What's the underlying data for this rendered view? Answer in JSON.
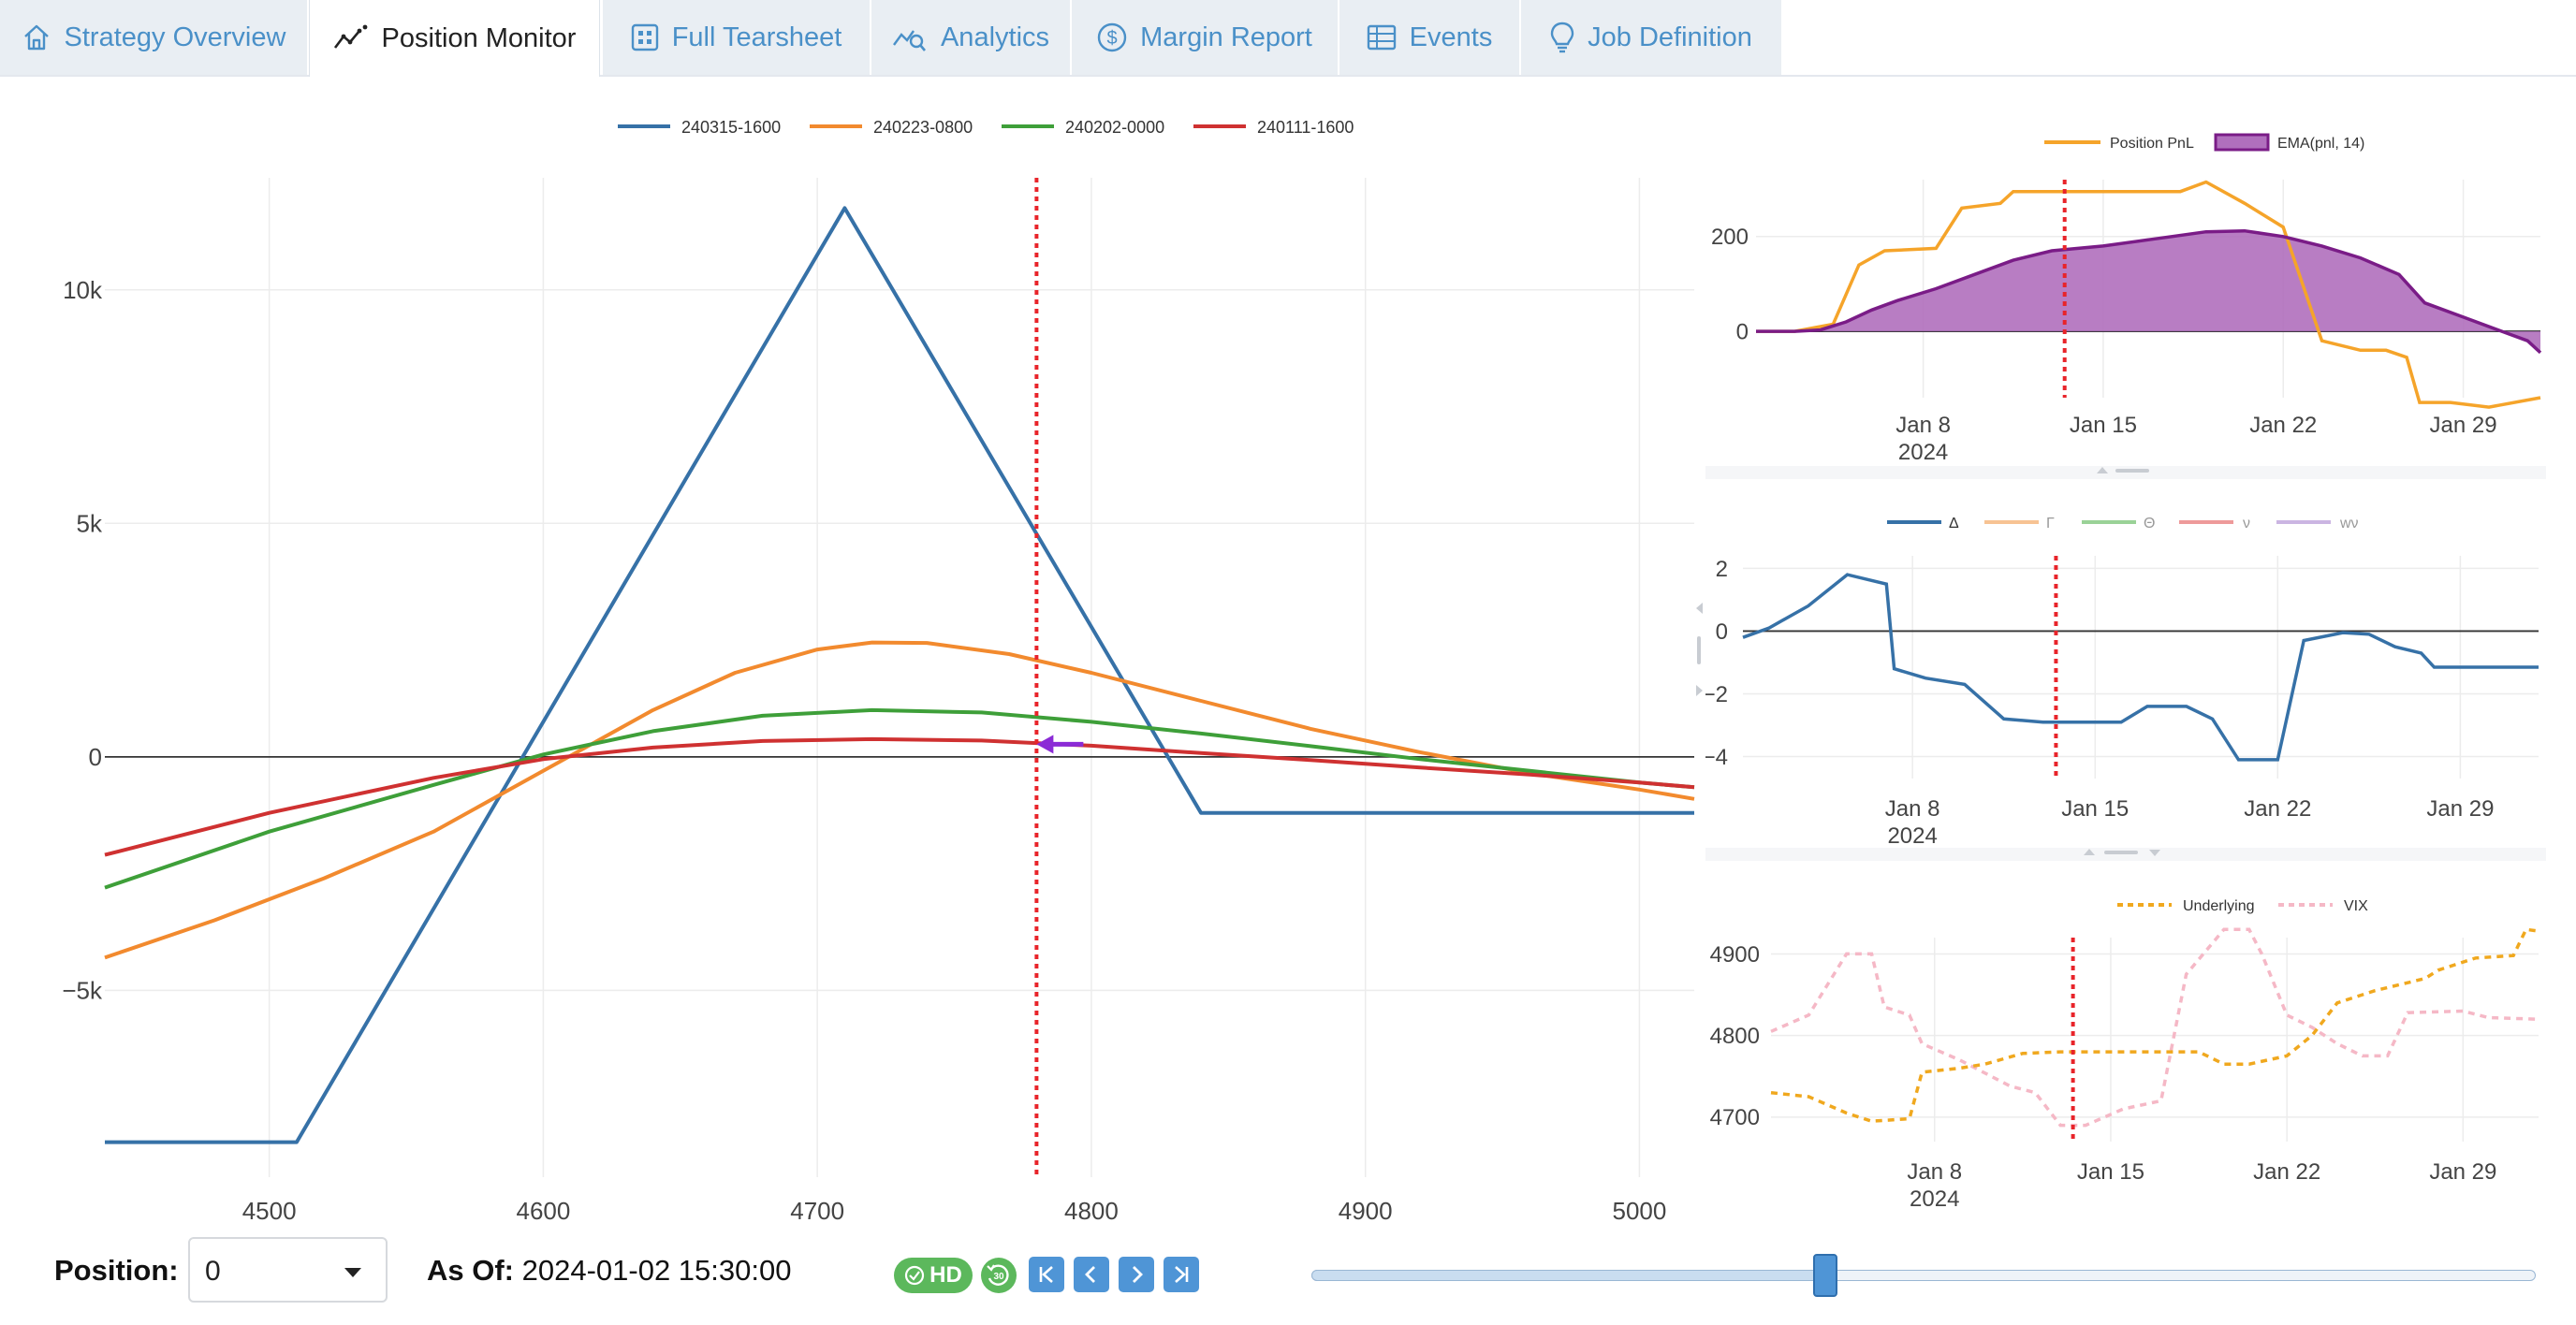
{
  "tabs": [
    {
      "label": "Strategy Overview",
      "icon": "home-icon"
    },
    {
      "label": "Position Monitor",
      "icon": "trend-icon",
      "active": true
    },
    {
      "label": "Full Tearsheet",
      "icon": "grid-icon"
    },
    {
      "label": "Analytics",
      "icon": "analytics-icon"
    },
    {
      "label": "Margin Report",
      "icon": "dollar-icon"
    },
    {
      "label": "Events",
      "icon": "table-icon"
    },
    {
      "label": "Job Definition",
      "icon": "bulb-icon"
    }
  ],
  "colors": {
    "blue": "#3671a7",
    "orange": "#f28a2e",
    "green": "#3e9f39",
    "red": "#cf3131",
    "purple": "#7a1c87",
    "purple_fill": "#b06fbd",
    "pnl_orange": "#f5a42a",
    "vix_pink": "#f5b8c6",
    "marker": "#e8242a",
    "arrow": "#8b2bd6"
  },
  "chart_data": [
    {
      "name": "payoff",
      "type": "line",
      "legend": [
        "240315-1600",
        "240223-0800",
        "240202-0000",
        "240111-1600"
      ],
      "xlim": [
        4440,
        5020
      ],
      "ylim": [
        -9000,
        12400
      ],
      "xticks": [
        4500,
        4600,
        4700,
        4800,
        4900,
        5000
      ],
      "xtick_labels": [
        "4500",
        "4600",
        "4700",
        "4800",
        "4900",
        "5000"
      ],
      "yticks": [
        -5000,
        0,
        5000,
        10000
      ],
      "ytick_labels": [
        "−5k",
        "0",
        "5k",
        "10k"
      ],
      "marker_x": 4780,
      "current_point": {
        "x": 4780,
        "y": 270
      },
      "series": [
        {
          "name": "240315-1600",
          "points": [
            [
              4440,
              -8250
            ],
            [
              4510,
              -8250
            ],
            [
              4710,
              11750
            ],
            [
              4840,
              -1200
            ],
            [
              5020,
              -1200
            ]
          ]
        },
        {
          "name": "240223-0800",
          "points": [
            [
              4440,
              -4300
            ],
            [
              4480,
              -3500
            ],
            [
              4520,
              -2600
            ],
            [
              4560,
              -1600
            ],
            [
              4600,
              -300
            ],
            [
              4640,
              1000
            ],
            [
              4670,
              1800
            ],
            [
              4700,
              2300
            ],
            [
              4720,
              2450
            ],
            [
              4740,
              2440
            ],
            [
              4770,
              2200
            ],
            [
              4800,
              1800
            ],
            [
              4840,
              1200
            ],
            [
              4880,
              600
            ],
            [
              4920,
              100
            ],
            [
              4960,
              -350
            ],
            [
              5000,
              -700
            ],
            [
              5020,
              -900
            ]
          ]
        },
        {
          "name": "240202-0000",
          "points": [
            [
              4440,
              -2800
            ],
            [
              4500,
              -1600
            ],
            [
              4560,
              -600
            ],
            [
              4600,
              50
            ],
            [
              4640,
              550
            ],
            [
              4680,
              880
            ],
            [
              4720,
              1000
            ],
            [
              4760,
              950
            ],
            [
              4800,
              750
            ],
            [
              4840,
              500
            ],
            [
              4880,
              230
            ],
            [
              4920,
              -50
            ],
            [
              4960,
              -300
            ],
            [
              5000,
              -550
            ],
            [
              5020,
              -650
            ]
          ]
        },
        {
          "name": "240111-1600",
          "points": [
            [
              4440,
              -2100
            ],
            [
              4500,
              -1200
            ],
            [
              4560,
              -450
            ],
            [
              4600,
              -50
            ],
            [
              4640,
              200
            ],
            [
              4680,
              340
            ],
            [
              4720,
              380
            ],
            [
              4760,
              350
            ],
            [
              4800,
              240
            ],
            [
              4840,
              80
            ],
            [
              4880,
              -70
            ],
            [
              4920,
              -230
            ],
            [
              4960,
              -380
            ],
            [
              5000,
              -550
            ],
            [
              5020,
              -650
            ]
          ]
        }
      ]
    },
    {
      "name": "pnl",
      "type": "area",
      "legend": [
        "Position PnL",
        "EMA(pnl, 14)"
      ],
      "xlim": [
        1.5,
        32.0
      ],
      "ylim": [
        -140,
        320
      ],
      "yticks": [
        0,
        200
      ],
      "ytick_labels": [
        "0",
        "200"
      ],
      "xticks": [
        8,
        15,
        22,
        29
      ],
      "xtick_labels": [
        "Jan 8",
        "Jan 15",
        "Jan 22",
        "Jan 29"
      ],
      "year_label": "2024",
      "marker_x": 13.5,
      "series": [
        {
          "name": "Position PnL",
          "points": [
            [
              1.5,
              0
            ],
            [
              3,
              0
            ],
            [
              4.5,
              15
            ],
            [
              5.5,
              140
            ],
            [
              6.5,
              170
            ],
            [
              8.5,
              175
            ],
            [
              9.5,
              260
            ],
            [
              11,
              270
            ],
            [
              11.5,
              295
            ],
            [
              14,
              295
            ],
            [
              18,
              295
            ],
            [
              19,
              315
            ],
            [
              20.5,
              270
            ],
            [
              22,
              220
            ],
            [
              23.5,
              -20
            ],
            [
              25,
              -40
            ],
            [
              26,
              -40
            ],
            [
              26.8,
              -55
            ],
            [
              27.3,
              -150
            ],
            [
              28.5,
              -150
            ],
            [
              30,
              -160
            ],
            [
              32,
              -140
            ]
          ]
        },
        {
          "name": "EMA(pnl, 14)",
          "points": [
            [
              1.5,
              0
            ],
            [
              3,
              0
            ],
            [
              4,
              3
            ],
            [
              5,
              20
            ],
            [
              6,
              45
            ],
            [
              7,
              65
            ],
            [
              8.5,
              90
            ],
            [
              10,
              120
            ],
            [
              11.5,
              150
            ],
            [
              13,
              170
            ],
            [
              15,
              180
            ],
            [
              17,
              195
            ],
            [
              19,
              210
            ],
            [
              20.5,
              212
            ],
            [
              22,
              200
            ],
            [
              23.5,
              180
            ],
            [
              25,
              155
            ],
            [
              26.5,
              120
            ],
            [
              27.5,
              60
            ],
            [
              29,
              30
            ],
            [
              30.5,
              0
            ],
            [
              31.5,
              -20
            ],
            [
              32,
              -45
            ]
          ]
        }
      ]
    },
    {
      "name": "greeks",
      "type": "line",
      "legend": [
        "Δ",
        "Γ",
        "Θ",
        "ν",
        "wν"
      ],
      "xlim": [
        1.5,
        32.0
      ],
      "ylim": [
        -4.7,
        2.4
      ],
      "yticks": [
        -4,
        -2,
        0,
        2
      ],
      "ytick_labels": [
        "−4",
        "−2",
        "0",
        "2"
      ],
      "xticks": [
        8,
        15,
        22,
        29
      ],
      "xtick_labels": [
        "Jan 8",
        "Jan 15",
        "Jan 22",
        "Jan 29"
      ],
      "year_label": "2024",
      "marker_x": 13.5,
      "series": [
        {
          "name": "Δ",
          "points": [
            [
              1.5,
              -0.2
            ],
            [
              2.5,
              0.1
            ],
            [
              4,
              0.8
            ],
            [
              5.5,
              1.8
            ],
            [
              7,
              1.5
            ],
            [
              7.3,
              -1.2
            ],
            [
              8.5,
              -1.5
            ],
            [
              10,
              -1.7
            ],
            [
              11.5,
              -2.8
            ],
            [
              13,
              -2.9
            ],
            [
              16,
              -2.9
            ],
            [
              17,
              -2.4
            ],
            [
              18.5,
              -2.4
            ],
            [
              19.5,
              -2.8
            ],
            [
              20.5,
              -4.1
            ],
            [
              22,
              -4.1
            ],
            [
              23,
              -0.3
            ],
            [
              24.5,
              -0.05
            ],
            [
              25.5,
              -0.1
            ],
            [
              26.5,
              -0.5
            ],
            [
              27.5,
              -0.7
            ],
            [
              28,
              -1.15
            ],
            [
              32,
              -1.15
            ]
          ]
        }
      ]
    },
    {
      "name": "market",
      "type": "line",
      "legend": [
        "Underlying",
        "VIX"
      ],
      "xlim": [
        1.5,
        32.0
      ],
      "ylim": [
        4670,
        4920
      ],
      "yticks": [
        4700,
        4800,
        4900
      ],
      "ytick_labels": [
        "4700",
        "4800",
        "4900"
      ],
      "xticks": [
        8,
        15,
        22,
        29
      ],
      "xtick_labels": [
        "Jan 8",
        "Jan 15",
        "Jan 22",
        "Jan 29"
      ],
      "year_label": "2024",
      "marker_x": 13.5,
      "series": [
        {
          "name": "Underlying",
          "points": [
            [
              1.5,
              4730
            ],
            [
              3,
              4725
            ],
            [
              4.5,
              4705
            ],
            [
              5.5,
              4695
            ],
            [
              7,
              4698
            ],
            [
              7.5,
              4755
            ],
            [
              9,
              4760
            ],
            [
              10,
              4765
            ],
            [
              11.5,
              4778
            ],
            [
              13,
              4780
            ],
            [
              18.5,
              4780
            ],
            [
              19.5,
              4765
            ],
            [
              20.5,
              4765
            ],
            [
              22,
              4775
            ],
            [
              23,
              4800
            ],
            [
              24,
              4840
            ],
            [
              25.5,
              4855
            ],
            [
              27.5,
              4870
            ],
            [
              28,
              4880
            ],
            [
              29.5,
              4895
            ],
            [
              31,
              4898
            ],
            [
              31.5,
              4930
            ],
            [
              32,
              4928
            ]
          ]
        },
        {
          "name": "VIX",
          "points": [
            [
              1.5,
              4805
            ],
            [
              3,
              4825
            ],
            [
              4.5,
              4900
            ],
            [
              5.5,
              4900
            ],
            [
              6,
              4835
            ],
            [
              7,
              4825
            ],
            [
              7.5,
              4790
            ],
            [
              9,
              4770
            ],
            [
              11,
              4738
            ],
            [
              12,
              4730
            ],
            [
              13,
              4690
            ],
            [
              14,
              4690
            ],
            [
              15.5,
              4710
            ],
            [
              17,
              4720
            ],
            [
              18,
              4875
            ],
            [
              19.5,
              4930
            ],
            [
              20.5,
              4930
            ],
            [
              21,
              4900
            ],
            [
              22,
              4825
            ],
            [
              23,
              4810
            ],
            [
              24,
              4790
            ],
            [
              25,
              4775
            ],
            [
              26,
              4775
            ],
            [
              26.8,
              4828
            ],
            [
              29,
              4830
            ],
            [
              30,
              4822
            ],
            [
              32,
              4820
            ]
          ]
        }
      ]
    }
  ],
  "controls": {
    "position_label": "Position:",
    "position_value": "0",
    "asof_label": "As Of:",
    "asof_value": "2024-01-02 15:30:00",
    "hd_label": "HD",
    "slider_value": 0.42
  }
}
